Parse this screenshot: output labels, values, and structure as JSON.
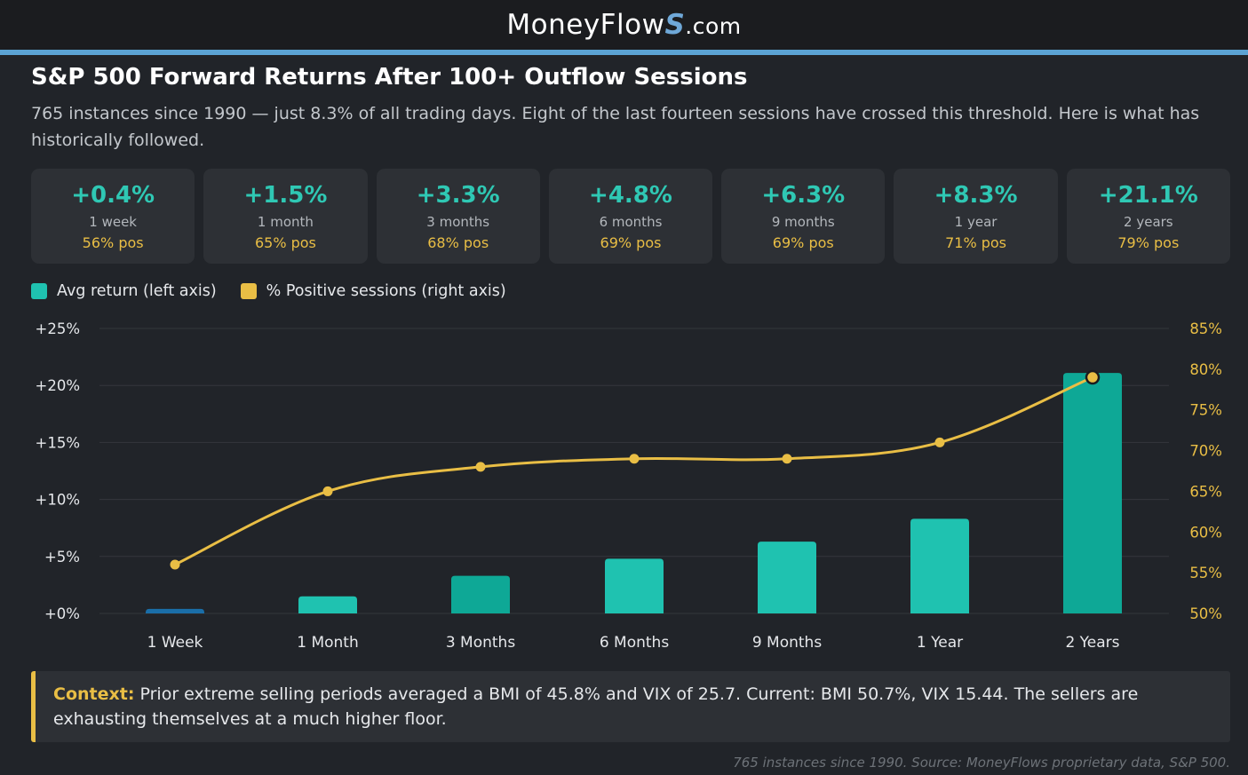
{
  "header": {
    "brand_main": "MoneyFlow",
    "brand_mark": "S",
    "brand_suffix": ".com"
  },
  "title": "S&P 500 Forward Returns After 100+ Outflow Sessions",
  "subtitle": "765 instances since 1990 — just 8.3% of all trading days. Eight of the last fourteen sessions have crossed this threshold. Here is what has historically followed.",
  "cards": [
    {
      "ret": "+0.4%",
      "period": "1 week",
      "pos": "56% pos"
    },
    {
      "ret": "+1.5%",
      "period": "1 month",
      "pos": "65% pos"
    },
    {
      "ret": "+3.3%",
      "period": "3 months",
      "pos": "68% pos"
    },
    {
      "ret": "+4.8%",
      "period": "6 months",
      "pos": "69% pos"
    },
    {
      "ret": "+6.3%",
      "period": "9 months",
      "pos": "69% pos"
    },
    {
      "ret": "+8.3%",
      "period": "1 year",
      "pos": "71% pos"
    },
    {
      "ret": "+21.1%",
      "period": "2 years",
      "pos": "79% pos"
    }
  ],
  "legend": {
    "bars": "Avg return (left axis)",
    "line": "% Positive sessions (right axis)"
  },
  "colors": {
    "bar": "#1fc2b0",
    "bar_alt": "#0ea896",
    "bar_first": "#1a6ea8",
    "line": "#e9be45",
    "grid": "#34373c"
  },
  "chart_data": {
    "type": "bar",
    "categories": [
      "1 Week",
      "1 Month",
      "3 Months",
      "6 Months",
      "9 Months",
      "1 Year",
      "2 Years"
    ],
    "series": [
      {
        "name": "Avg return (left axis)",
        "axis": "left",
        "type": "bar",
        "values": [
          0.4,
          1.5,
          3.3,
          4.8,
          6.3,
          8.3,
          21.1
        ]
      },
      {
        "name": "% Positive sessions (right axis)",
        "axis": "right",
        "type": "line",
        "values": [
          56,
          65,
          68,
          69,
          69,
          71,
          79
        ]
      }
    ],
    "left_axis": {
      "ylim": [
        0,
        25
      ],
      "ticks": [
        0,
        5,
        10,
        15,
        20,
        25
      ],
      "tick_labels": [
        "+0%",
        "+5%",
        "+10%",
        "+15%",
        "+20%",
        "+25%"
      ]
    },
    "right_axis": {
      "ylim": [
        50,
        85
      ],
      "ticks": [
        50,
        55,
        60,
        65,
        70,
        75,
        80,
        85
      ],
      "tick_labels": [
        "50%",
        "55%",
        "60%",
        "65%",
        "70%",
        "75%",
        "80%",
        "85%"
      ]
    },
    "grid": true,
    "legend_position": "top-left"
  },
  "context": {
    "lead": "Context:",
    "text": " Prior extreme selling periods averaged a BMI of 45.8% and VIX of 25.7. Current: BMI 50.7%, VIX 15.44. The sellers are exhausting themselves at a much higher floor."
  },
  "footnote": "765 instances since 1990. Source: MoneyFlows proprietary data, S&P 500."
}
